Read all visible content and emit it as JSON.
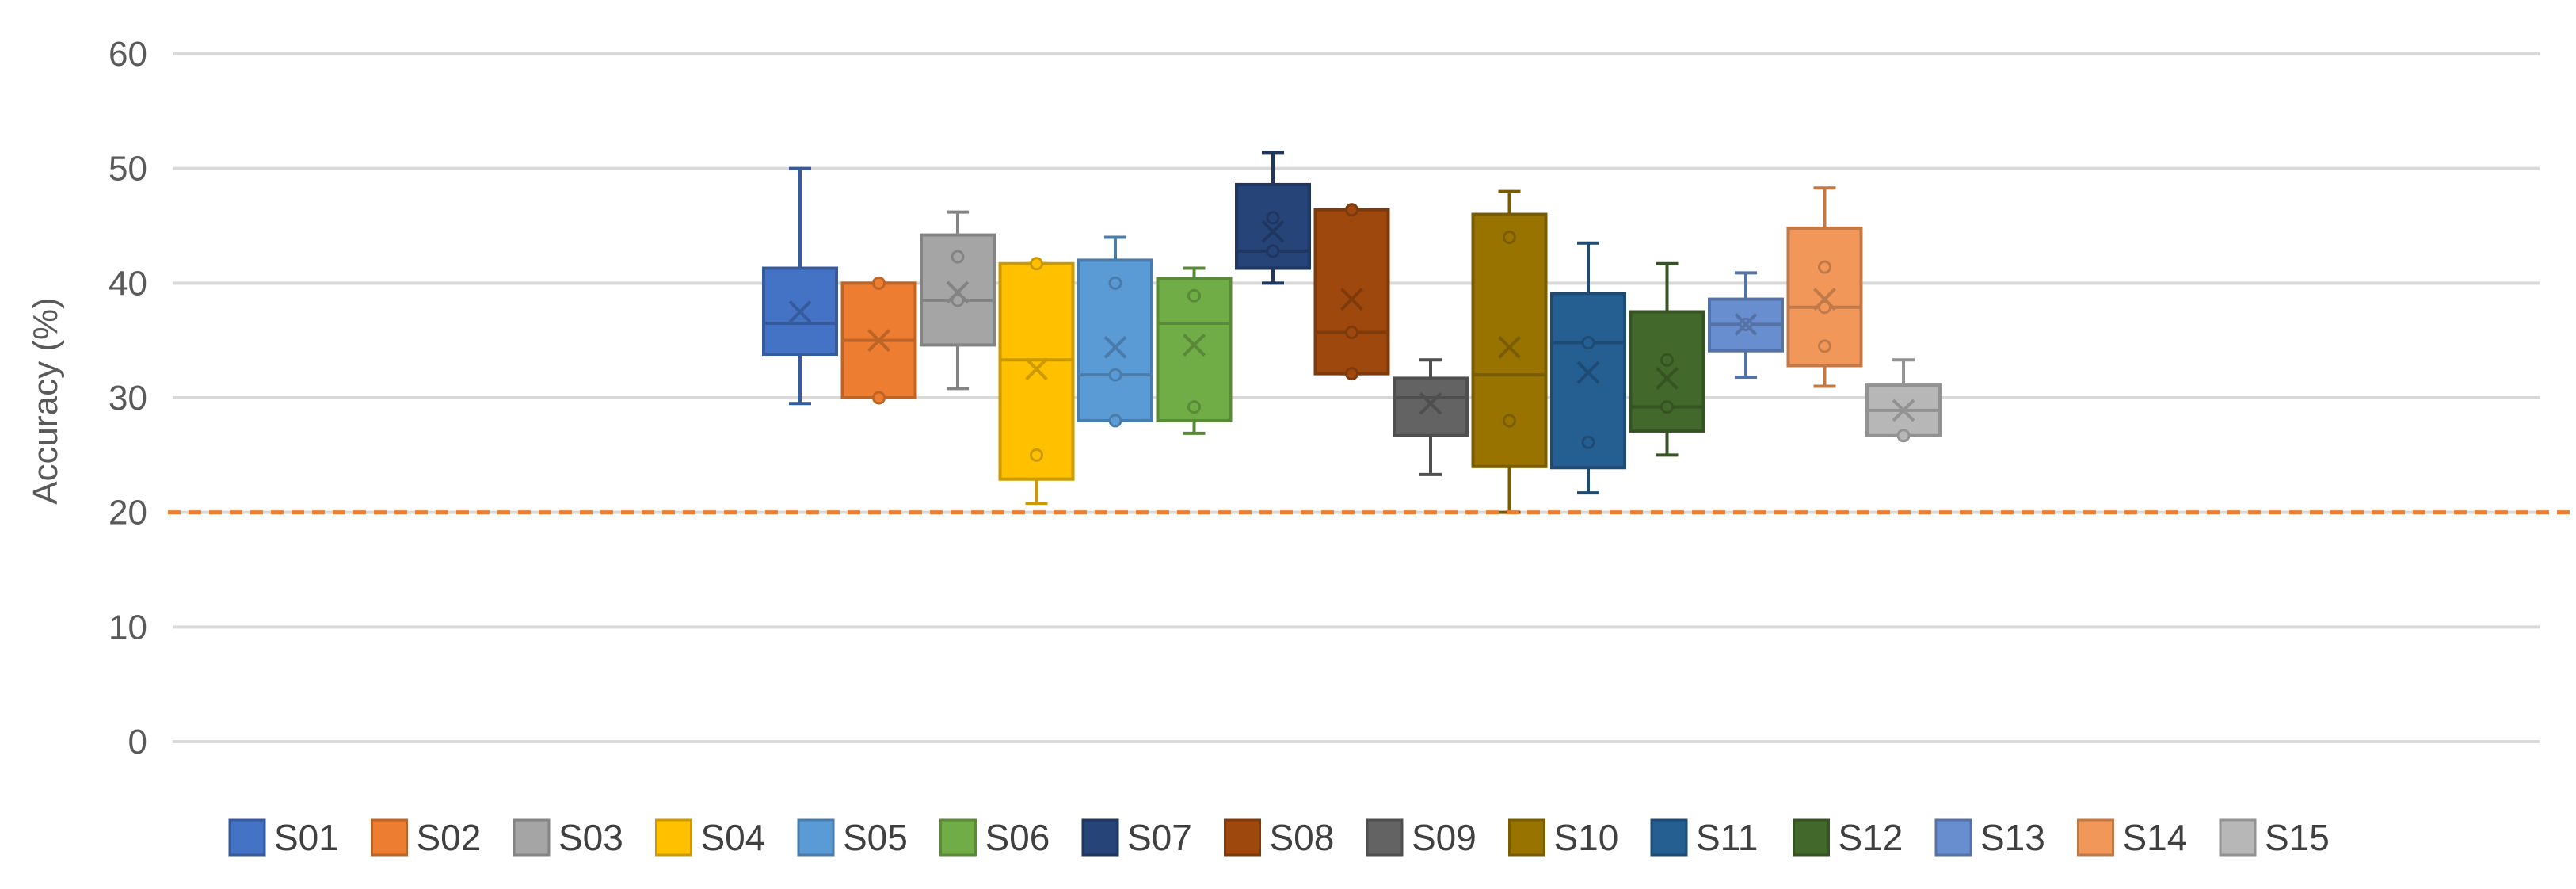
{
  "chart_data": {
    "type": "box",
    "title": "",
    "xlabel": "",
    "ylabel": "Accuracy (%)",
    "ylim": [
      0,
      60
    ],
    "yticks": [
      "0",
      "10",
      "20",
      "30",
      "40",
      "50",
      "60"
    ],
    "grid": true,
    "legend_position": "bottom",
    "reference_line": {
      "value": 20,
      "color": "#ED7D31",
      "style": "dashed"
    },
    "series": [
      {
        "name": "S01",
        "color": "#4472C4",
        "min": 29.5,
        "q1": 33.8,
        "median": 36.5,
        "q3": 41.3,
        "max": 50.0,
        "mean": 37.5,
        "points": []
      },
      {
        "name": "S02",
        "color": "#ED7D31",
        "min": 30.0,
        "q1": 30.0,
        "median": 35.0,
        "q3": 40.0,
        "max": 40.0,
        "mean": 35.0,
        "points": [
          30.0,
          40.0
        ]
      },
      {
        "name": "S03",
        "color": "#A5A5A5",
        "min": 30.8,
        "q1": 34.6,
        "median": 38.5,
        "q3": 44.2,
        "max": 46.2,
        "mean": 39.2,
        "points": [
          38.5,
          42.3
        ]
      },
      {
        "name": "S04",
        "color": "#FFC000",
        "min": 20.8,
        "q1": 22.9,
        "median": 33.3,
        "q3": 41.7,
        "max": 41.7,
        "mean": 32.5,
        "points": [
          25.0,
          41.7
        ]
      },
      {
        "name": "S05",
        "color": "#5B9BD5",
        "min": 28.0,
        "q1": 28.0,
        "median": 32.0,
        "q3": 42.0,
        "max": 44.0,
        "mean": 34.4,
        "points": [
          28.0,
          32.0,
          40.0
        ]
      },
      {
        "name": "S06",
        "color": "#70AD47",
        "min": 26.9,
        "q1": 28.0,
        "median": 36.5,
        "q3": 40.4,
        "max": 41.3,
        "mean": 34.6,
        "points": [
          29.2,
          38.9
        ]
      },
      {
        "name": "S07",
        "color": "#264478",
        "min": 40.0,
        "q1": 41.3,
        "median": 42.8,
        "q3": 48.6,
        "max": 51.4,
        "mean": 44.5,
        "points": [
          42.8,
          45.7
        ]
      },
      {
        "name": "S08",
        "color": "#9E480E",
        "min": 32.1,
        "q1": 32.1,
        "median": 35.7,
        "q3": 46.4,
        "max": 46.4,
        "mean": 38.6,
        "points": [
          32.1,
          35.7,
          46.4
        ]
      },
      {
        "name": "S09",
        "color": "#636363",
        "min": 23.3,
        "q1": 26.7,
        "median": 30.0,
        "q3": 31.7,
        "max": 33.3,
        "mean": 29.5,
        "points": []
      },
      {
        "name": "S10",
        "color": "#997300",
        "min": 20.0,
        "q1": 24.0,
        "median": 32.0,
        "q3": 46.0,
        "max": 48.0,
        "mean": 34.4,
        "points": [
          28.0,
          44.0
        ]
      },
      {
        "name": "S11",
        "color": "#255E91",
        "min": 21.7,
        "q1": 23.9,
        "median": 34.8,
        "q3": 39.1,
        "max": 43.5,
        "mean": 32.2,
        "points": [
          26.1,
          34.8
        ]
      },
      {
        "name": "S12",
        "color": "#43682B",
        "min": 25.0,
        "q1": 27.1,
        "median": 29.2,
        "q3": 37.5,
        "max": 41.7,
        "mean": 31.7,
        "points": [
          29.2,
          33.3
        ]
      },
      {
        "name": "S13",
        "color": "#698ED0",
        "min": 31.8,
        "q1": 34.1,
        "median": 36.4,
        "q3": 38.6,
        "max": 40.9,
        "mean": 36.4,
        "points": [
          36.4
        ]
      },
      {
        "name": "S14",
        "color": "#F1975A",
        "min": 31.0,
        "q1": 32.8,
        "median": 37.9,
        "q3": 44.8,
        "max": 48.3,
        "mean": 38.6,
        "points": [
          34.5,
          37.9,
          41.4
        ]
      },
      {
        "name": "S15",
        "color": "#B7B7B7",
        "min": 26.7,
        "q1": 26.7,
        "median": 28.9,
        "q3": 31.1,
        "max": 33.3,
        "mean": 28.9,
        "points": [
          26.7
        ]
      }
    ]
  }
}
